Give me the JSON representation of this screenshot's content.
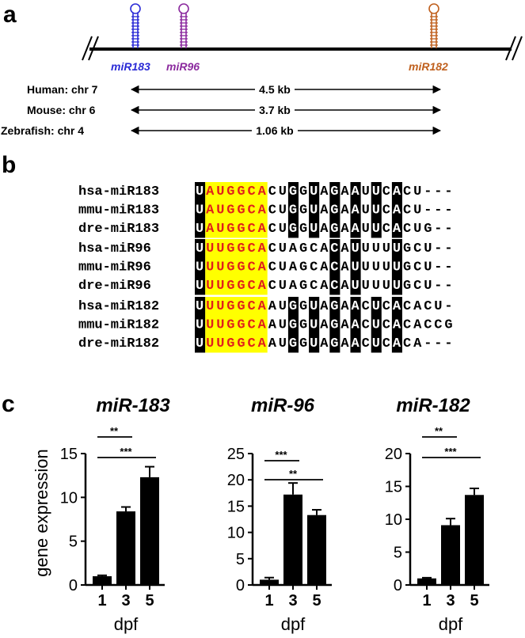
{
  "panels": {
    "a": "a",
    "b": "b",
    "c": "c"
  },
  "locus": {
    "mirs": [
      {
        "name": "miR183",
        "color": "#2b2bd6"
      },
      {
        "name": "miR96",
        "color": "#8b2a9e"
      },
      {
        "name": "miR182",
        "color": "#c0601e"
      }
    ],
    "species": [
      {
        "label": "Human: chr 7",
        "length": "4.5 kb"
      },
      {
        "label": "Mouse: chr 6",
        "length": "3.7 kb"
      },
      {
        "label": "Zebrafish:  chr 4",
        "length": "1.06 kb"
      }
    ]
  },
  "alignment": {
    "seed_color": "#ffff00",
    "red_color": "#e0201c",
    "groups": [
      {
        "rows": [
          {
            "name": "hsa-miR183",
            "seq": "UAUGGCACUGGUAGAAUUCACU---"
          },
          {
            "name": "mmu-miR183",
            "seq": "UAUGGCACUGGUAGAAUUCACU---"
          },
          {
            "name": "dre-miR183",
            "seq": "UAUGGCACUGGUAGAAUUCACUG--"
          }
        ]
      },
      {
        "rows": [
          {
            "name": "hsa-miR96",
            "seq": "UUUGGCACUAGCACAUUUUUGCU--"
          },
          {
            "name": "mmu-miR96",
            "seq": "UUUGGCACUAGCACAUUUUUGCU--"
          },
          {
            "name": "dre-miR96",
            "seq": "UUUGGCACUAGCACAUUUUUGCU--"
          }
        ]
      },
      {
        "rows": [
          {
            "name": "hsa-miR182",
            "seq": "UUUGGCAAUGGUAGAACUCACACU-"
          },
          {
            "name": "mmu-miR182",
            "seq": "UUUGGCAAUGGUAGAACUCACACCG"
          },
          {
            "name": "dre-miR182",
            "seq": "UUUGGCAAUGGUAGAACUCACA---"
          }
        ]
      }
    ]
  },
  "chart_data": [
    {
      "type": "bar",
      "title": "miR-183",
      "ylabel": "gene expression",
      "xlabel": "dpf",
      "categories": [
        "1",
        "3",
        "5"
      ],
      "values": [
        1.0,
        8.4,
        12.3
      ],
      "errors": [
        0.1,
        0.5,
        1.2
      ],
      "ylim": [
        0,
        15
      ],
      "yticks": [
        "0",
        "5",
        "10",
        "15"
      ],
      "significance": [
        {
          "pair": [
            "1",
            "3"
          ],
          "label": "**"
        },
        {
          "pair": [
            "1",
            "5"
          ],
          "label": "***"
        }
      ]
    },
    {
      "type": "bar",
      "title": "miR-96",
      "xlabel": "dpf",
      "categories": [
        "1",
        "3",
        "5"
      ],
      "values": [
        1.0,
        17.2,
        13.3
      ],
      "errors": [
        0.4,
        2.2,
        1.0
      ],
      "ylim": [
        0,
        25
      ],
      "yticks": [
        "0",
        "5",
        "10",
        "15",
        "20",
        "25"
      ],
      "significance": [
        {
          "pair": [
            "1",
            "3"
          ],
          "label": "***"
        },
        {
          "pair": [
            "1",
            "5"
          ],
          "label": "**"
        }
      ]
    },
    {
      "type": "bar",
      "title": "miR-182",
      "xlabel": "dpf",
      "categories": [
        "1",
        "3",
        "5"
      ],
      "values": [
        1.0,
        9.1,
        13.7
      ],
      "errors": [
        0.1,
        1.0,
        1.0
      ],
      "ylim": [
        0,
        20
      ],
      "yticks": [
        "0",
        "5",
        "10",
        "15",
        "20"
      ],
      "significance": [
        {
          "pair": [
            "1",
            "3"
          ],
          "label": "**"
        },
        {
          "pair": [
            "1",
            "5"
          ],
          "label": "***"
        }
      ]
    }
  ]
}
